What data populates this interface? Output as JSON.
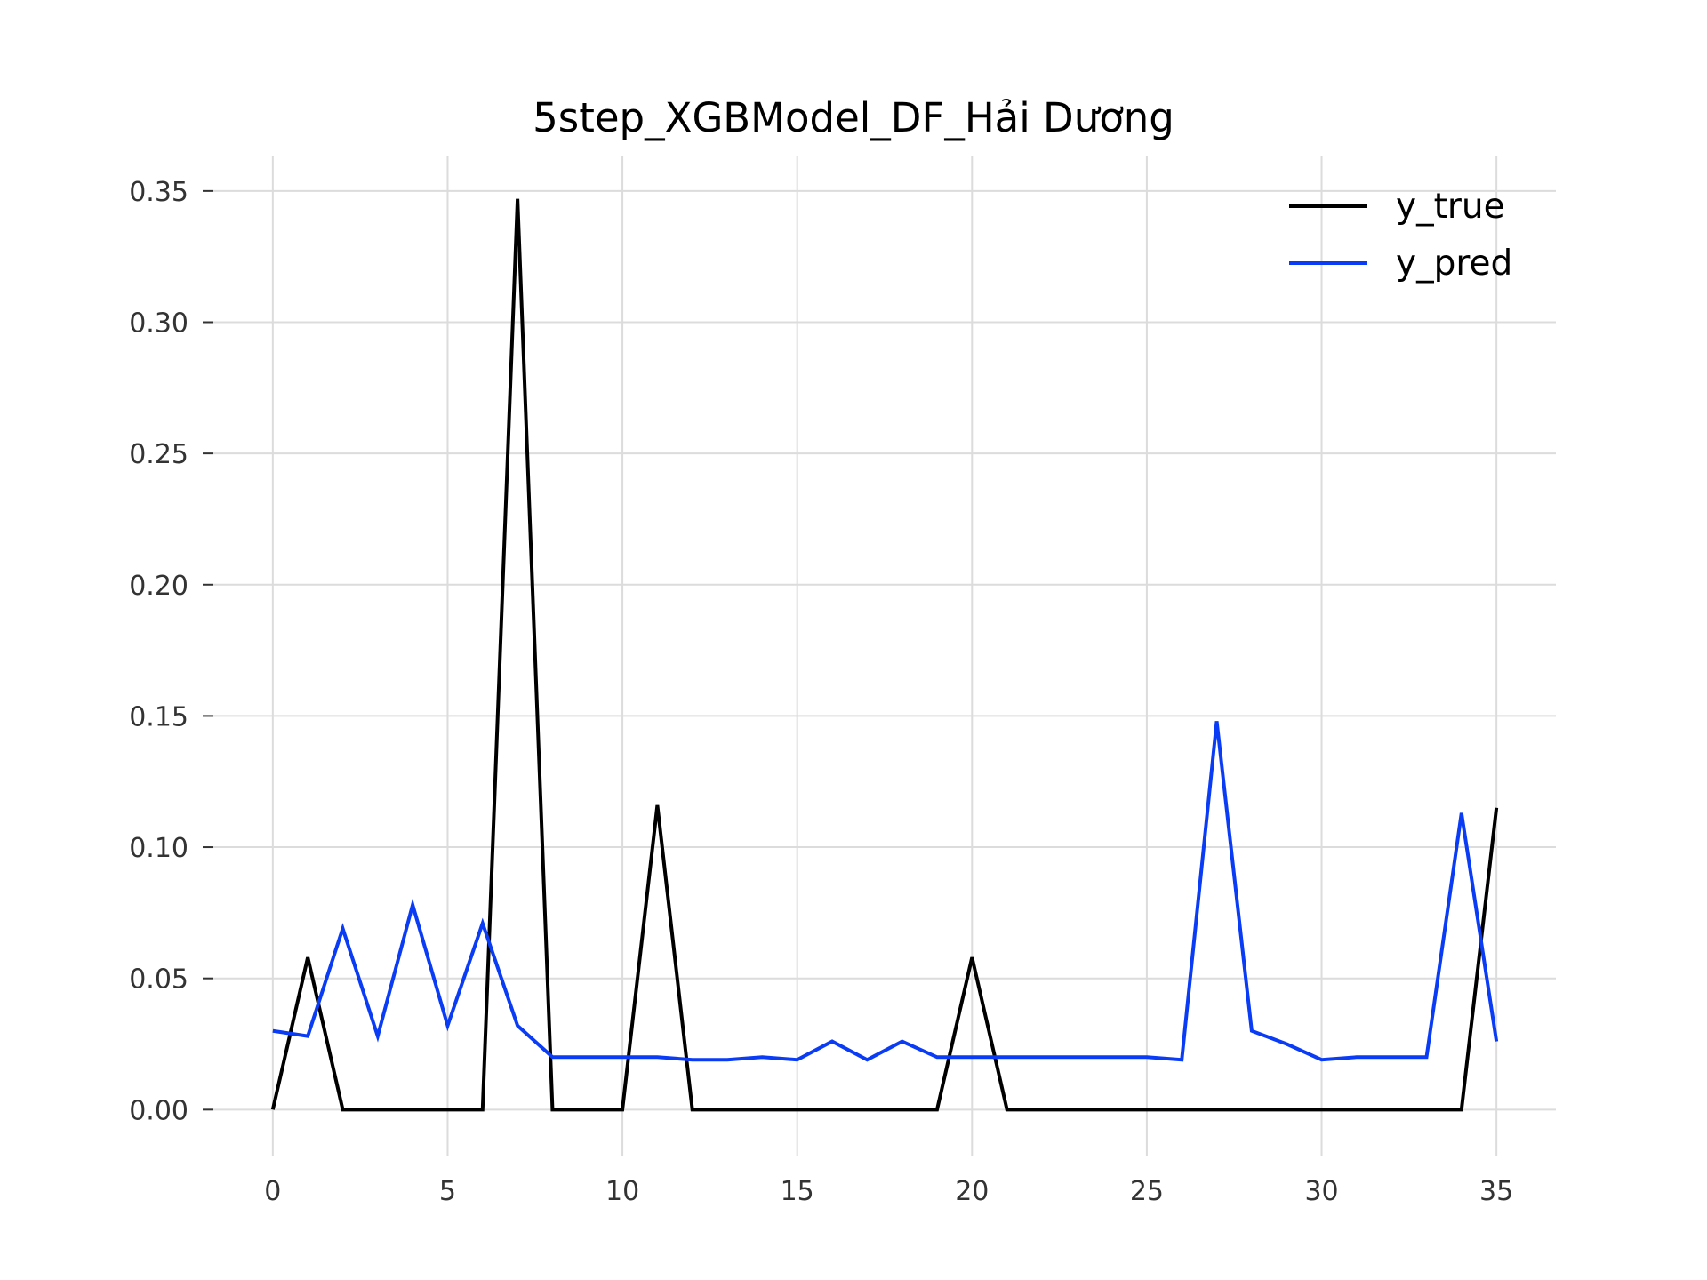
{
  "chart_data": {
    "type": "line",
    "title": "5step_XGBModel_DF_Hải Dương",
    "xlabel": "",
    "ylabel": "",
    "xlim": [
      -1.7,
      36.7
    ],
    "ylim": [
      -0.0175,
      0.3635
    ],
    "xticks": [
      0,
      5,
      10,
      15,
      20,
      25,
      30,
      35
    ],
    "xtick_labels": [
      "0",
      "5",
      "10",
      "15",
      "20",
      "25",
      "30",
      "35"
    ],
    "yticks": [
      0.0,
      0.05,
      0.1,
      0.15,
      0.2,
      0.25,
      0.3,
      0.35
    ],
    "ytick_labels": [
      "0.00",
      "0.05",
      "0.10",
      "0.15",
      "0.20",
      "0.25",
      "0.30",
      "0.35"
    ],
    "grid": true,
    "legend_position": "top-right",
    "x": [
      0,
      1,
      2,
      3,
      4,
      5,
      6,
      7,
      8,
      9,
      10,
      11,
      12,
      13,
      14,
      15,
      16,
      17,
      18,
      19,
      20,
      21,
      22,
      23,
      24,
      25,
      26,
      27,
      28,
      29,
      30,
      31,
      32,
      33,
      34,
      35
    ],
    "series": [
      {
        "name": "y_true",
        "color": "#000000",
        "values": [
          0,
          0.058,
          0,
          0,
          0,
          0,
          0,
          0.347,
          0,
          0,
          0,
          0.116,
          0,
          0,
          0,
          0,
          0,
          0,
          0,
          0,
          0.058,
          0,
          0,
          0,
          0,
          0,
          0,
          0,
          0,
          0,
          0,
          0,
          0,
          0,
          0,
          0.115
        ]
      },
      {
        "name": "y_pred",
        "color": "#0a3cf5",
        "values": [
          0.03,
          0.028,
          0.069,
          0.028,
          0.078,
          0.032,
          0.071,
          0.032,
          0.02,
          0.02,
          0.02,
          0.02,
          0.019,
          0.019,
          0.02,
          0.019,
          0.026,
          0.019,
          0.026,
          0.02,
          0.02,
          0.02,
          0.02,
          0.02,
          0.02,
          0.02,
          0.019,
          0.148,
          0.03,
          0.025,
          0.019,
          0.02,
          0.02,
          0.02,
          0.113,
          0.026
        ]
      }
    ]
  }
}
